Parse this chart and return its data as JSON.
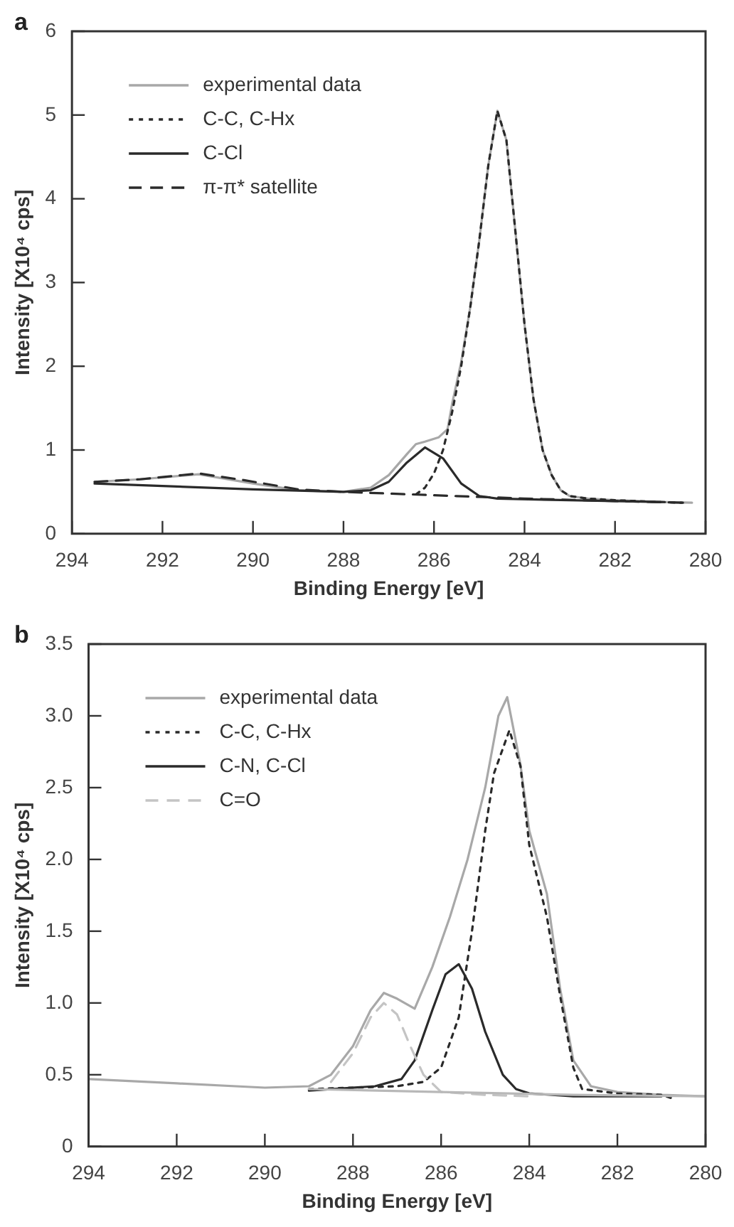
{
  "chart_data": [
    {
      "type": "line",
      "title": "a",
      "xlabel": "Binding Energy [eV]",
      "ylabel": "Intensity [X10⁴ cps]",
      "legend": "top left",
      "xlim": [
        294,
        280
      ],
      "xticks": [
        294,
        292,
        290,
        288,
        286,
        284,
        282,
        280
      ],
      "ylim": [
        0,
        6
      ],
      "yticks": [
        0,
        1,
        2,
        3,
        4,
        5,
        6
      ],
      "series": [
        {
          "name": "experimental data",
          "color": "#a8a8a8",
          "line_style": "solid",
          "x": [
            293.5,
            292.5,
            291.2,
            290,
            289,
            288,
            287.4,
            287,
            286.6,
            286.4,
            286.2,
            285.9,
            285.7,
            285.6,
            285.4,
            285.2,
            285.0,
            284.8,
            284.6,
            284.4,
            284.2,
            284.0,
            283.8,
            283.6,
            283.4,
            283.2,
            283.0,
            282.6,
            282.0,
            281.0,
            280.3
          ],
          "values": [
            0.62,
            0.65,
            0.71,
            0.6,
            0.52,
            0.5,
            0.55,
            0.7,
            0.95,
            1.07,
            1.1,
            1.15,
            1.25,
            1.55,
            2.05,
            2.7,
            3.5,
            4.4,
            5.05,
            4.7,
            3.6,
            2.5,
            1.6,
            1.0,
            0.7,
            0.52,
            0.45,
            0.42,
            0.4,
            0.38,
            0.37
          ]
        },
        {
          "name": "C-C, C-Hx",
          "color": "#2a2a2a",
          "line_style": "dotted",
          "x": [
            286.4,
            286.2,
            286.0,
            285.8,
            285.6,
            285.4,
            285.2,
            285.0,
            284.8,
            284.6,
            284.4,
            284.2,
            284.0,
            283.8,
            283.6,
            283.4,
            283.2,
            283.0,
            282.6,
            282.0,
            281.0,
            280.5
          ],
          "values": [
            0.47,
            0.55,
            0.72,
            1.0,
            1.45,
            2.0,
            2.7,
            3.5,
            4.4,
            5.05,
            4.7,
            3.6,
            2.5,
            1.6,
            1.0,
            0.7,
            0.52,
            0.45,
            0.42,
            0.4,
            0.38,
            0.37
          ]
        },
        {
          "name": "C-Cl",
          "color": "#2a2a2a",
          "line_style": "solid",
          "x": [
            293.5,
            292,
            290,
            288,
            287.4,
            287,
            286.6,
            286.2,
            285.8,
            285.4,
            285.0,
            284.6,
            283,
            281
          ],
          "values": [
            0.6,
            0.57,
            0.53,
            0.5,
            0.52,
            0.62,
            0.85,
            1.03,
            0.9,
            0.6,
            0.45,
            0.42,
            0.4,
            0.38
          ]
        },
        {
          "name": "π-π* satellite",
          "color": "#2a2a2a",
          "line_style": "dashed",
          "x": [
            293.5,
            292.5,
            291.2,
            290.2,
            289,
            288,
            286.5,
            285.5,
            284,
            282,
            280.5
          ],
          "values": [
            0.62,
            0.65,
            0.72,
            0.64,
            0.53,
            0.5,
            0.47,
            0.45,
            0.42,
            0.39,
            0.37
          ]
        }
      ]
    },
    {
      "type": "line",
      "title": "b",
      "xlabel": "Binding Energy [eV]",
      "ylabel": "Intensity [X10⁴ cps]",
      "legend": "top left",
      "xlim": [
        294,
        280
      ],
      "xticks": [
        294,
        292,
        290,
        288,
        286,
        284,
        282,
        280
      ],
      "ylim": [
        0,
        3.5
      ],
      "yticks": [
        0,
        0.5,
        {
          "value": 1,
          "label": "1.0"
        },
        1.5,
        {
          "value": 2,
          "label": "2.0"
        },
        2.5,
        {
          "value": 3,
          "label": "3.0"
        },
        3.5
      ],
      "series": [
        {
          "name": "experimental data",
          "color": "#a8a8a8",
          "line_style": "solid",
          "x": [
            294,
            292,
            290,
            289,
            288.5,
            288,
            287.6,
            287.3,
            287,
            286.6,
            286.2,
            285.8,
            285.4,
            285.0,
            284.7,
            284.5,
            284.2,
            284.0,
            283.6,
            283.3,
            283.0,
            282.6,
            282,
            281,
            280
          ],
          "values": [
            0.47,
            0.44,
            0.41,
            0.42,
            0.5,
            0.7,
            0.95,
            1.07,
            1.03,
            0.96,
            1.25,
            1.6,
            2.0,
            2.5,
            3.0,
            3.13,
            2.66,
            2.2,
            1.76,
            1.1,
            0.6,
            0.42,
            0.38,
            0.36,
            0.35
          ]
        },
        {
          "name": "C-C, C-Hx",
          "color": "#2a2a2a",
          "line_style": "dotted",
          "x": [
            289,
            287,
            286.4,
            286.0,
            285.6,
            285.3,
            285.0,
            284.8,
            284.45,
            284.2,
            284.0,
            283.6,
            283.3,
            283.0,
            282.8,
            282,
            281,
            280.7
          ],
          "values": [
            0.4,
            0.42,
            0.45,
            0.55,
            0.9,
            1.5,
            2.2,
            2.6,
            2.9,
            2.65,
            2.1,
            1.6,
            1.05,
            0.55,
            0.4,
            0.37,
            0.36,
            0.33
          ]
        },
        {
          "name": "C-N, C-Cl",
          "color": "#2a2a2a",
          "line_style": "solid",
          "x": [
            289,
            287.5,
            286.9,
            286.6,
            286.2,
            285.9,
            285.6,
            285.3,
            285.0,
            284.6,
            284.3,
            284.0,
            283.0,
            281.0
          ],
          "values": [
            0.39,
            0.42,
            0.47,
            0.6,
            0.95,
            1.2,
            1.27,
            1.1,
            0.8,
            0.5,
            0.4,
            0.37,
            0.35,
            0.35
          ]
        },
        {
          "name": "C=O",
          "color": "#c4c4c4",
          "line_style": "dashed",
          "x": [
            288.5,
            288,
            287.6,
            287.3,
            287,
            286.7,
            286.4,
            286,
            285,
            284
          ],
          "values": [
            0.45,
            0.65,
            0.9,
            1.0,
            0.92,
            0.7,
            0.5,
            0.38,
            0.36,
            0.35
          ]
        },
        {
          "color": "#b8b8b8",
          "line_style": "solid",
          "x": [
            289,
            286,
            283,
            280
          ],
          "values": [
            0.4,
            0.38,
            0.36,
            0.35
          ]
        }
      ]
    }
  ]
}
